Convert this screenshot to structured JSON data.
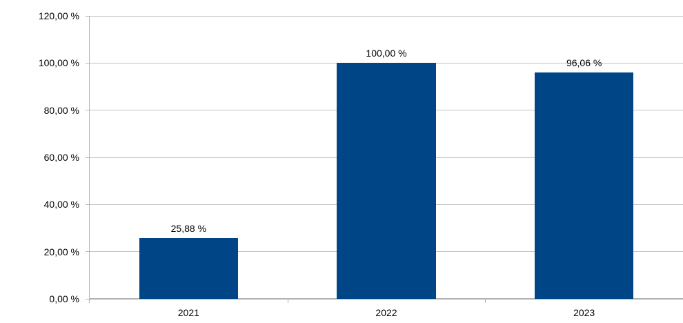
{
  "chart_data": {
    "type": "bar",
    "title": "",
    "categories": [
      "2021",
      "2022",
      "2023"
    ],
    "values": [
      25.88,
      100.0,
      96.06
    ],
    "data_labels": [
      "25,88 %",
      "100,00 %",
      "96,06 %"
    ],
    "y_axis": {
      "range": [
        0,
        120
      ],
      "ticks": [
        {
          "value": 0,
          "label": "0,00 %"
        },
        {
          "value": 20,
          "label": "20,00 %"
        },
        {
          "value": 40,
          "label": "40,00 %"
        },
        {
          "value": 60,
          "label": "60,00 %"
        },
        {
          "value": 80,
          "label": "80,00 %"
        },
        {
          "value": 100,
          "label": "100,00 %"
        },
        {
          "value": 120,
          "label": "120,00 %"
        }
      ]
    },
    "grid": "horizontal",
    "legend": "none",
    "bar_width_ratio": 0.5,
    "colors": {
      "bar": "#004586",
      "gridline": "#C0C0C0",
      "axis": "#B3B3B3",
      "text": "#000000",
      "background": "#FFFFFF"
    }
  }
}
